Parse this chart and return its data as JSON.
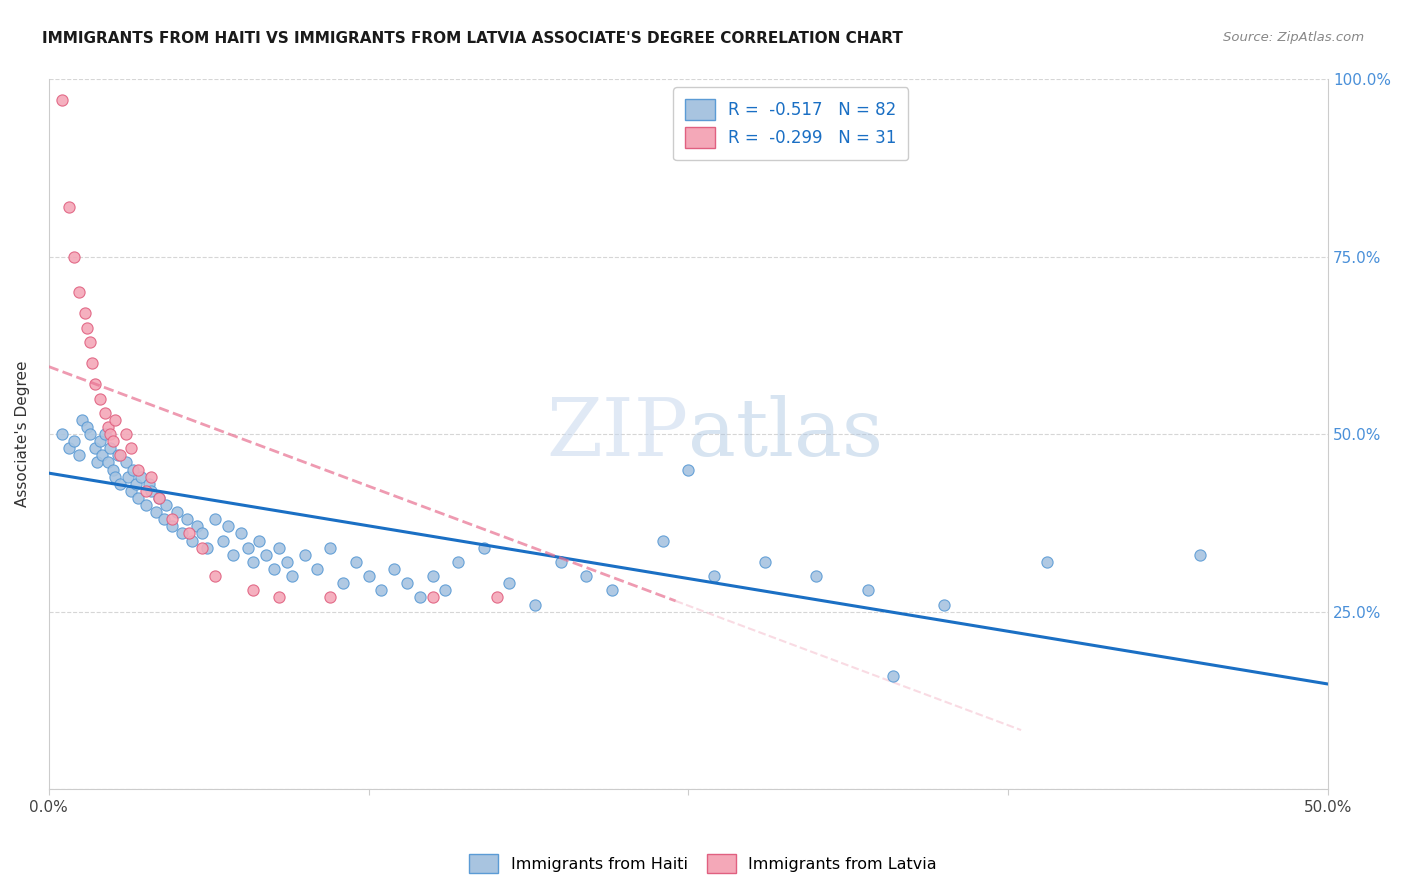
{
  "title": "IMMIGRANTS FROM HAITI VS IMMIGRANTS FROM LATVIA ASSOCIATE'S DEGREE CORRELATION CHART",
  "source": "Source: ZipAtlas.com",
  "ylabel": "Associate's Degree",
  "watermark_zip": "ZIP",
  "watermark_atlas": "atlas",
  "haiti_color": "#a8c4e0",
  "haiti_edge_color": "#5b9bd5",
  "latvia_color": "#f4a8b8",
  "latvia_edge_color": "#e06080",
  "haiti_line_color": "#1a6fc4",
  "latvia_line_color": "#e87090",
  "xlim": [
    0.0,
    0.5
  ],
  "ylim": [
    0.0,
    1.0
  ],
  "haiti_line_x0": 0.0,
  "haiti_line_x1": 0.5,
  "haiti_line_y0": 0.445,
  "haiti_line_y1": 0.148,
  "latvia_line_x0": 0.0,
  "latvia_line_x1": 0.245,
  "latvia_line_y0": 0.595,
  "latvia_line_y1": 0.265,
  "haiti_scatter_x": [
    0.005,
    0.008,
    0.01,
    0.012,
    0.013,
    0.015,
    0.016,
    0.018,
    0.019,
    0.02,
    0.021,
    0.022,
    0.023,
    0.024,
    0.025,
    0.026,
    0.027,
    0.028,
    0.03,
    0.031,
    0.032,
    0.033,
    0.034,
    0.035,
    0.036,
    0.038,
    0.039,
    0.04,
    0.042,
    0.043,
    0.045,
    0.046,
    0.048,
    0.05,
    0.052,
    0.054,
    0.056,
    0.058,
    0.06,
    0.062,
    0.065,
    0.068,
    0.07,
    0.072,
    0.075,
    0.078,
    0.08,
    0.082,
    0.085,
    0.088,
    0.09,
    0.093,
    0.095,
    0.1,
    0.105,
    0.11,
    0.115,
    0.12,
    0.125,
    0.13,
    0.135,
    0.14,
    0.145,
    0.15,
    0.155,
    0.16,
    0.17,
    0.18,
    0.19,
    0.2,
    0.21,
    0.22,
    0.24,
    0.26,
    0.28,
    0.3,
    0.32,
    0.35,
    0.39,
    0.25,
    0.45,
    0.33
  ],
  "haiti_scatter_y": [
    0.5,
    0.48,
    0.49,
    0.47,
    0.52,
    0.51,
    0.5,
    0.48,
    0.46,
    0.49,
    0.47,
    0.5,
    0.46,
    0.48,
    0.45,
    0.44,
    0.47,
    0.43,
    0.46,
    0.44,
    0.42,
    0.45,
    0.43,
    0.41,
    0.44,
    0.4,
    0.43,
    0.42,
    0.39,
    0.41,
    0.38,
    0.4,
    0.37,
    0.39,
    0.36,
    0.38,
    0.35,
    0.37,
    0.36,
    0.34,
    0.38,
    0.35,
    0.37,
    0.33,
    0.36,
    0.34,
    0.32,
    0.35,
    0.33,
    0.31,
    0.34,
    0.32,
    0.3,
    0.33,
    0.31,
    0.34,
    0.29,
    0.32,
    0.3,
    0.28,
    0.31,
    0.29,
    0.27,
    0.3,
    0.28,
    0.32,
    0.34,
    0.29,
    0.26,
    0.32,
    0.3,
    0.28,
    0.35,
    0.3,
    0.32,
    0.3,
    0.28,
    0.26,
    0.32,
    0.45,
    0.33,
    0.16
  ],
  "latvia_scatter_x": [
    0.005,
    0.008,
    0.01,
    0.012,
    0.014,
    0.015,
    0.016,
    0.017,
    0.018,
    0.02,
    0.022,
    0.023,
    0.024,
    0.025,
    0.026,
    0.028,
    0.03,
    0.032,
    0.035,
    0.038,
    0.04,
    0.043,
    0.048,
    0.055,
    0.06,
    0.065,
    0.08,
    0.09,
    0.11,
    0.15,
    0.175
  ],
  "latvia_scatter_y": [
    0.97,
    0.82,
    0.75,
    0.7,
    0.67,
    0.65,
    0.63,
    0.6,
    0.57,
    0.55,
    0.53,
    0.51,
    0.5,
    0.49,
    0.52,
    0.47,
    0.5,
    0.48,
    0.45,
    0.42,
    0.44,
    0.41,
    0.38,
    0.36,
    0.34,
    0.3,
    0.28,
    0.27,
    0.27,
    0.27,
    0.27
  ],
  "grid_color": "#cccccc",
  "spine_color": "#cccccc",
  "right_tick_color": "#4a90d9",
  "title_fontsize": 11,
  "axis_fontsize": 11,
  "tick_fontsize": 11
}
